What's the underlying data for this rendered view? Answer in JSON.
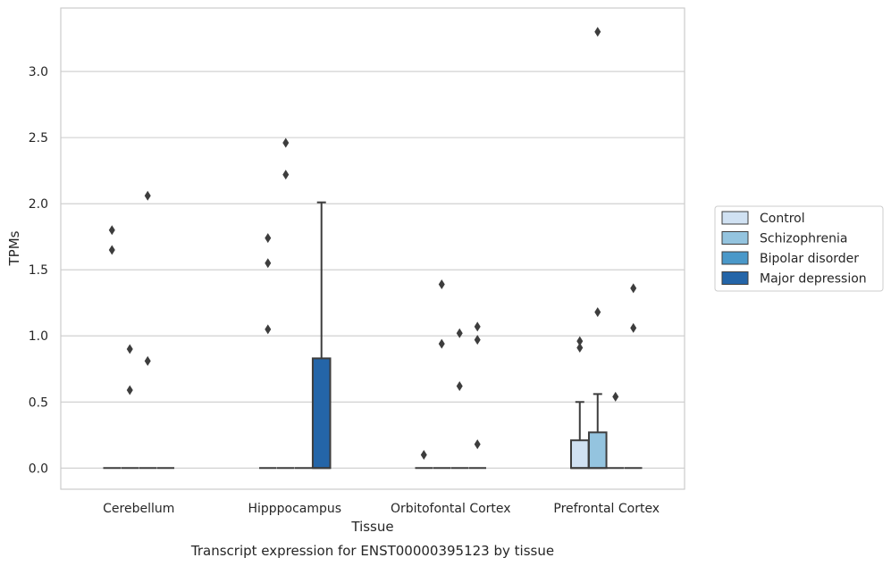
{
  "chart_data": {
    "type": "box",
    "xlabel": "Tissue",
    "ylabel": "TPMs",
    "caption": "Transcript expression for ENST00000395123 by tissue",
    "ylim": [
      -0.16,
      3.48
    ],
    "yticks": [
      0.0,
      0.5,
      1.0,
      1.5,
      2.0,
      2.5,
      3.0
    ],
    "ytick_labels": [
      "0.0",
      "0.5",
      "1.0",
      "1.5",
      "2.0",
      "2.5",
      "3.0"
    ],
    "grid": "horizontal",
    "legend_position": "right",
    "categories": [
      "Cerebellum",
      "Hipppocampus",
      "Orbitofontal Cortex",
      "Prefrontal Cortex"
    ],
    "series": [
      {
        "name": "Control",
        "color": "#d0e1f2",
        "boxes": [
          {
            "q1": 0,
            "median": 0,
            "q3": 0,
            "whisker_low": 0,
            "whisker_high": 0,
            "outliers": [
              1.8,
              1.65
            ]
          },
          {
            "q1": 0,
            "median": 0,
            "q3": 0,
            "whisker_low": 0,
            "whisker_high": 0,
            "outliers": [
              1.74,
              1.55,
              1.05
            ]
          },
          {
            "q1": 0,
            "median": 0,
            "q3": 0,
            "whisker_low": 0,
            "whisker_high": 0,
            "outliers": [
              0.1
            ]
          },
          {
            "q1": 0,
            "median": 0,
            "q3": 0.21,
            "whisker_low": 0,
            "whisker_high": 0.5,
            "outliers": [
              0.96,
              0.91
            ]
          }
        ]
      },
      {
        "name": "Schizophrenia",
        "color": "#94c4df",
        "boxes": [
          {
            "q1": 0,
            "median": 0,
            "q3": 0,
            "whisker_low": 0,
            "whisker_high": 0,
            "outliers": [
              0.9,
              0.59
            ]
          },
          {
            "q1": 0,
            "median": 0,
            "q3": 0,
            "whisker_low": 0,
            "whisker_high": 0,
            "outliers": [
              2.46,
              2.22
            ]
          },
          {
            "q1": 0,
            "median": 0,
            "q3": 0,
            "whisker_low": 0,
            "whisker_high": 0,
            "outliers": [
              1.39,
              0.94
            ]
          },
          {
            "q1": 0,
            "median": 0,
            "q3": 0.27,
            "whisker_low": 0,
            "whisker_high": 0.56,
            "outliers": [
              3.3,
              1.18
            ]
          }
        ]
      },
      {
        "name": "Bipolar disorder",
        "color": "#4a98c9",
        "boxes": [
          {
            "q1": 0,
            "median": 0,
            "q3": 0,
            "whisker_low": 0,
            "whisker_high": 0,
            "outliers": [
              2.06,
              0.81
            ]
          },
          {
            "q1": 0,
            "median": 0,
            "q3": 0,
            "whisker_low": 0,
            "whisker_high": 0,
            "outliers": []
          },
          {
            "q1": 0,
            "median": 0,
            "q3": 0,
            "whisker_low": 0,
            "whisker_high": 0,
            "outliers": [
              1.02,
              0.62
            ]
          },
          {
            "q1": 0,
            "median": 0,
            "q3": 0,
            "whisker_low": 0,
            "whisker_high": 0,
            "outliers": [
              0.54
            ]
          }
        ]
      },
      {
        "name": "Major depression",
        "color": "#2465a8",
        "boxes": [
          {
            "q1": 0,
            "median": 0,
            "q3": 0,
            "whisker_low": 0,
            "whisker_high": 0,
            "outliers": []
          },
          {
            "q1": 0,
            "median": 0,
            "q3": 0.83,
            "whisker_low": 0,
            "whisker_high": 2.01,
            "outliers": []
          },
          {
            "q1": 0,
            "median": 0,
            "q3": 0,
            "whisker_low": 0,
            "whisker_high": 0,
            "outliers": [
              1.07,
              0.97,
              0.18
            ]
          },
          {
            "q1": 0,
            "median": 0,
            "q3": 0,
            "whisker_low": 0,
            "whisker_high": 0,
            "outliers": [
              1.36,
              1.06
            ]
          }
        ]
      }
    ]
  }
}
